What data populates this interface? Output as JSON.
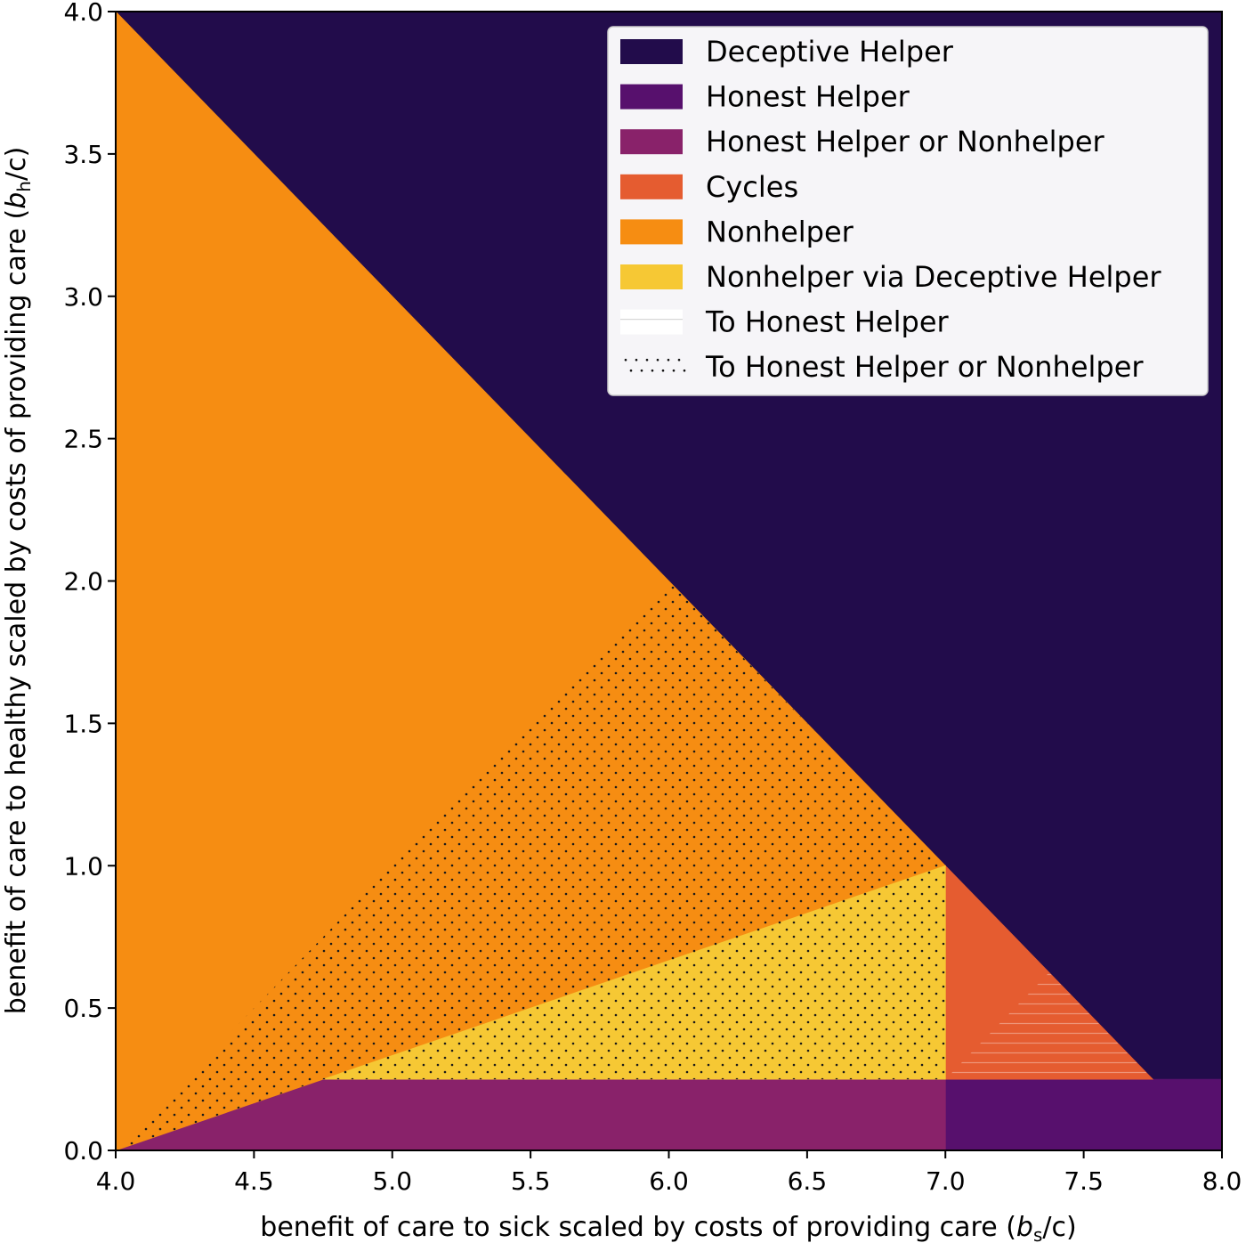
{
  "chart_data": {
    "type": "area",
    "xlabel_main": "benefit of care to sick scaled by costs of providing care (",
    "xlabel_var": "b",
    "xlabel_sub": "s",
    "xlabel_tail": "/c)",
    "ylabel_main": "benefit of care to healthy scaled by costs of providing care (",
    "ylabel_var": "b",
    "ylabel_sub": "h",
    "ylabel_tail": "/c)",
    "xlim": [
      4.0,
      8.0
    ],
    "ylim": [
      0.0,
      4.0
    ],
    "xticks": [
      "4.0",
      "4.5",
      "5.0",
      "5.5",
      "6.0",
      "6.5",
      "7.0",
      "7.5",
      "8.0"
    ],
    "yticks": [
      "0.0",
      "0.5",
      "1.0",
      "1.5",
      "2.0",
      "2.5",
      "3.0",
      "3.5",
      "4.0"
    ],
    "grid": false,
    "legend_position": "upper-right",
    "regions": [
      {
        "name": "Deceptive Helper",
        "color": "#220c4b",
        "polygon": [
          [
            4.0,
            4.0
          ],
          [
            8.0,
            4.0
          ],
          [
            8.0,
            0.25
          ],
          [
            7.75,
            0.25
          ],
          [
            4.0,
            4.0
          ]
        ]
      },
      {
        "name": "Honest Helper",
        "color": "#57106d",
        "polygon": [
          [
            7.0,
            0.0
          ],
          [
            8.0,
            0.0
          ],
          [
            8.0,
            0.25
          ],
          [
            7.0,
            0.25
          ]
        ]
      },
      {
        "name": "Honest Helper or Nonhelper",
        "color": "#89226a",
        "polygon": [
          [
            4.0,
            0.0
          ],
          [
            7.0,
            0.0
          ],
          [
            7.0,
            0.25
          ],
          [
            4.75,
            0.25
          ]
        ]
      },
      {
        "name": "Cycles",
        "color": "#e55c30",
        "polygon": [
          [
            7.0,
            0.25
          ],
          [
            7.0,
            1.0
          ],
          [
            7.75,
            0.25
          ]
        ]
      },
      {
        "name": "Nonhelper",
        "color": "#f68d12",
        "polygon": [
          [
            4.0,
            0.0
          ],
          [
            4.0,
            4.0
          ],
          [
            7.0,
            1.0
          ],
          [
            4.75,
            0.25
          ]
        ]
      },
      {
        "name": "Nonhelper via Deceptive Helper",
        "color": "#f6c834",
        "polygon": [
          [
            4.75,
            0.25
          ],
          [
            7.0,
            1.0
          ],
          [
            7.0,
            0.25
          ]
        ]
      }
    ],
    "hatches": [
      {
        "name": "To Honest Helper",
        "style": "lines",
        "polygon": [
          [
            7.0,
            0.25
          ],
          [
            7.75,
            0.25
          ],
          [
            7.375,
            0.625
          ]
        ]
      },
      {
        "name": "To Honest Helper or Nonhelper",
        "style": "dots",
        "polygon": [
          [
            4.0,
            0.0
          ],
          [
            6.0,
            2.0
          ],
          [
            7.0,
            1.0
          ],
          [
            7.0,
            0.25
          ],
          [
            4.75,
            0.25
          ]
        ]
      }
    ],
    "legend": [
      {
        "label": "Deceptive Helper",
        "kind": "patch",
        "color": "#220c4b"
      },
      {
        "label": "Honest Helper",
        "kind": "patch",
        "color": "#57106d"
      },
      {
        "label": "Honest Helper or Nonhelper",
        "kind": "patch",
        "color": "#89226a"
      },
      {
        "label": "Cycles",
        "kind": "patch",
        "color": "#e55c30"
      },
      {
        "label": "Nonhelper",
        "kind": "patch",
        "color": "#f68d12"
      },
      {
        "label": "Nonhelper via Deceptive Helper",
        "kind": "patch",
        "color": "#f6c834"
      },
      {
        "label": "To Honest Helper",
        "kind": "lines"
      },
      {
        "label": "To Honest Helper or Nonhelper",
        "kind": "dots"
      }
    ]
  }
}
